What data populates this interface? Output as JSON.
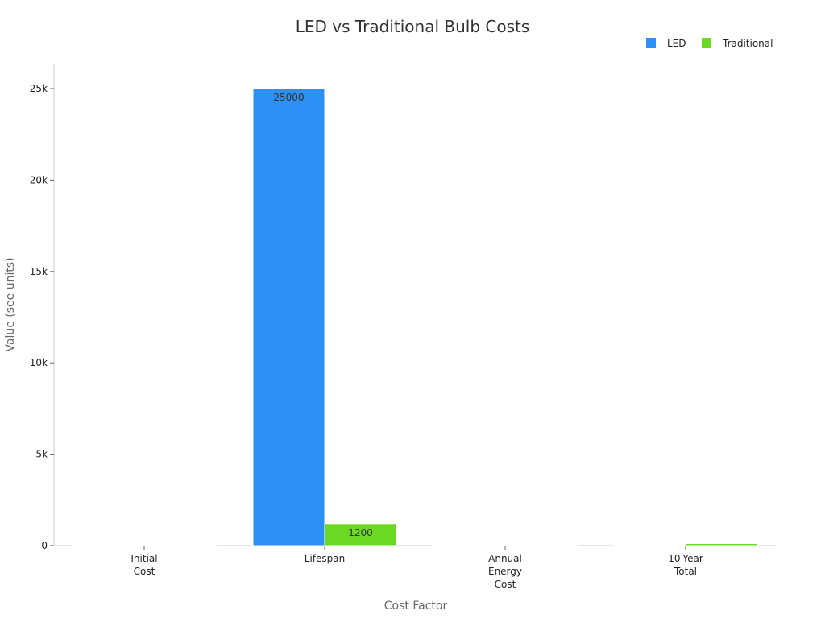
{
  "chart_data": {
    "type": "bar",
    "title": "LED vs Traditional Bulb Costs",
    "xlabel": "Cost Factor",
    "ylabel": "Value (see units)",
    "categories": [
      [
        "Initial",
        "Cost"
      ],
      [
        "Lifespan"
      ],
      [
        "Annual",
        "Energy",
        "Cost"
      ],
      [
        "10-Year",
        "Total"
      ]
    ],
    "series": [
      {
        "name": "LED",
        "color": "#2e8ff5",
        "values": [
          8,
          25000,
          1,
          18
        ],
        "labels": [
          "",
          "25000",
          "",
          ""
        ]
      },
      {
        "name": "Traditional",
        "color": "#6ad825",
        "values": [
          1,
          1200,
          7,
          110
        ],
        "labels": [
          "",
          "1200",
          "",
          ""
        ]
      }
    ],
    "ylim": [
      0,
      26300
    ],
    "yticks": [
      0,
      5000,
      10000,
      15000,
      20000,
      25000
    ],
    "ytick_labels": [
      "0",
      "5k",
      "10k",
      "15k",
      "20k",
      "25k"
    ],
    "legend": "top-right",
    "grid": false
  }
}
